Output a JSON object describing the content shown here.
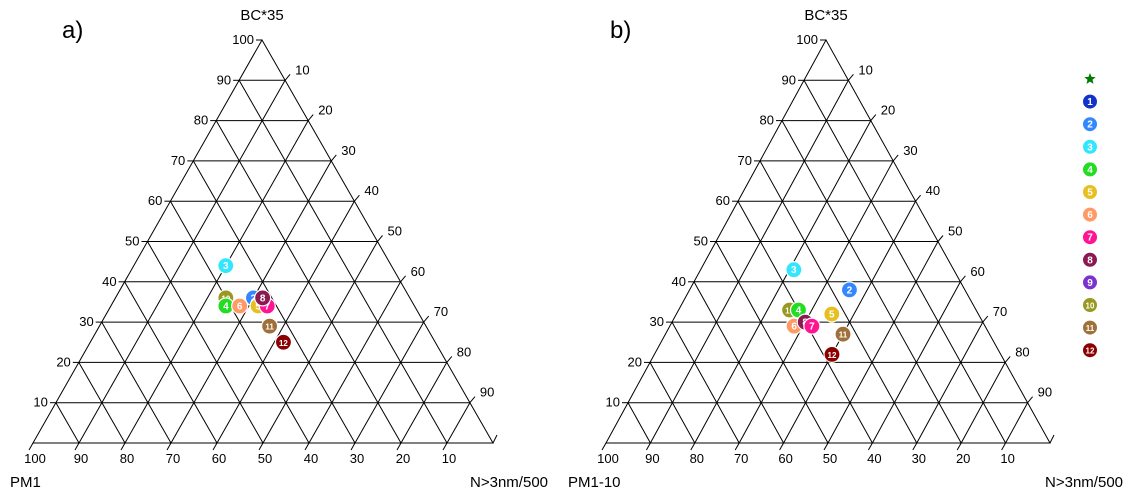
{
  "chart_data": [
    {
      "type": "ternary",
      "panel_label": "a)",
      "top_axis_label": "BC*35",
      "right_axis_label": "N>3nm/500",
      "left_axis_label": "PM1",
      "top_ticks": [
        "10",
        "20",
        "30",
        "40",
        "50",
        "60",
        "70",
        "80",
        "90",
        "100"
      ],
      "right_ticks": [
        "10",
        "20",
        "30",
        "40",
        "50",
        "60",
        "70",
        "80",
        "90"
      ],
      "bottom_ticks": [
        "100",
        "90",
        "80",
        "70",
        "60",
        "50",
        "40",
        "30",
        "20",
        "10"
      ],
      "points": [
        {
          "id": "3",
          "color": "#33e6ff",
          "bc": 44,
          "pm": 36
        },
        {
          "id": "10",
          "color": "#999922",
          "bc": 36,
          "pm": 40
        },
        {
          "id": "4",
          "color": "#22dd22",
          "bc": 34,
          "pm": 41
        },
        {
          "id": "6",
          "color": "#ff9966",
          "bc": 34,
          "pm": 38
        },
        {
          "id": "2",
          "color": "#3388ff",
          "bc": 36,
          "pm": 34
        },
        {
          "id": "5",
          "color": "#e6c020",
          "bc": 34,
          "pm": 34
        },
        {
          "id": "7",
          "color": "#ff1493",
          "bc": 34,
          "pm": 32
        },
        {
          "id": "8",
          "color": "#8b1a50",
          "bc": 36,
          "pm": 32
        },
        {
          "id": "11",
          "color": "#a0703a",
          "bc": 29,
          "pm": 34
        },
        {
          "id": "12",
          "color": "#8b0000",
          "bc": 25,
          "pm": 33
        }
      ]
    },
    {
      "type": "ternary",
      "panel_label": "b)",
      "top_axis_label": "BC*35",
      "right_axis_label": "N>3nm/500",
      "left_axis_label": "PM1-10",
      "top_ticks": [
        "10",
        "20",
        "30",
        "40",
        "50",
        "60",
        "70",
        "80",
        "90",
        "100"
      ],
      "right_ticks": [
        "10",
        "20",
        "30",
        "40",
        "50",
        "60",
        "70",
        "80",
        "90"
      ],
      "bottom_ticks": [
        "100",
        "90",
        "80",
        "70",
        "60",
        "50",
        "40",
        "30",
        "20",
        "10"
      ],
      "points": [
        {
          "id": "3",
          "color": "#33e6ff",
          "bc": 43,
          "pm": 36
        },
        {
          "id": "2",
          "color": "#3388ff",
          "bc": 38,
          "pm": 26
        },
        {
          "id": "10",
          "color": "#999922",
          "bc": 33,
          "pm": 42
        },
        {
          "id": "4",
          "color": "#22dd22",
          "bc": 33,
          "pm": 40
        },
        {
          "id": "5",
          "color": "#e6c020",
          "bc": 32,
          "pm": 33
        },
        {
          "id": "6",
          "color": "#ff9966",
          "bc": 29,
          "pm": 43
        },
        {
          "id": "8",
          "color": "#8b1a50",
          "bc": 30,
          "pm": 40
        },
        {
          "id": "7",
          "color": "#ff1493",
          "bc": 29,
          "pm": 39
        },
        {
          "id": "11",
          "color": "#a0703a",
          "bc": 27,
          "pm": 33
        },
        {
          "id": "12",
          "color": "#8b0000",
          "bc": 22,
          "pm": 38
        }
      ]
    }
  ],
  "legend": [
    {
      "symbol": "star",
      "label": "",
      "color": "#007a00"
    },
    {
      "symbol": "circle",
      "label": "1",
      "color": "#1133cc"
    },
    {
      "symbol": "circle",
      "label": "2",
      "color": "#3388ff"
    },
    {
      "symbol": "circle",
      "label": "3",
      "color": "#33e6ff"
    },
    {
      "symbol": "circle",
      "label": "4",
      "color": "#22dd22"
    },
    {
      "symbol": "circle",
      "label": "5",
      "color": "#e6c020"
    },
    {
      "symbol": "circle",
      "label": "6",
      "color": "#ff9966"
    },
    {
      "symbol": "circle",
      "label": "7",
      "color": "#ff1493"
    },
    {
      "symbol": "circle",
      "label": "8",
      "color": "#8b1a50"
    },
    {
      "symbol": "circle",
      "label": "9",
      "color": "#7a33cc"
    },
    {
      "symbol": "circle",
      "label": "10",
      "color": "#999922"
    },
    {
      "symbol": "circle",
      "label": "11",
      "color": "#a0703a"
    },
    {
      "symbol": "circle",
      "label": "12",
      "color": "#8b0000"
    }
  ]
}
